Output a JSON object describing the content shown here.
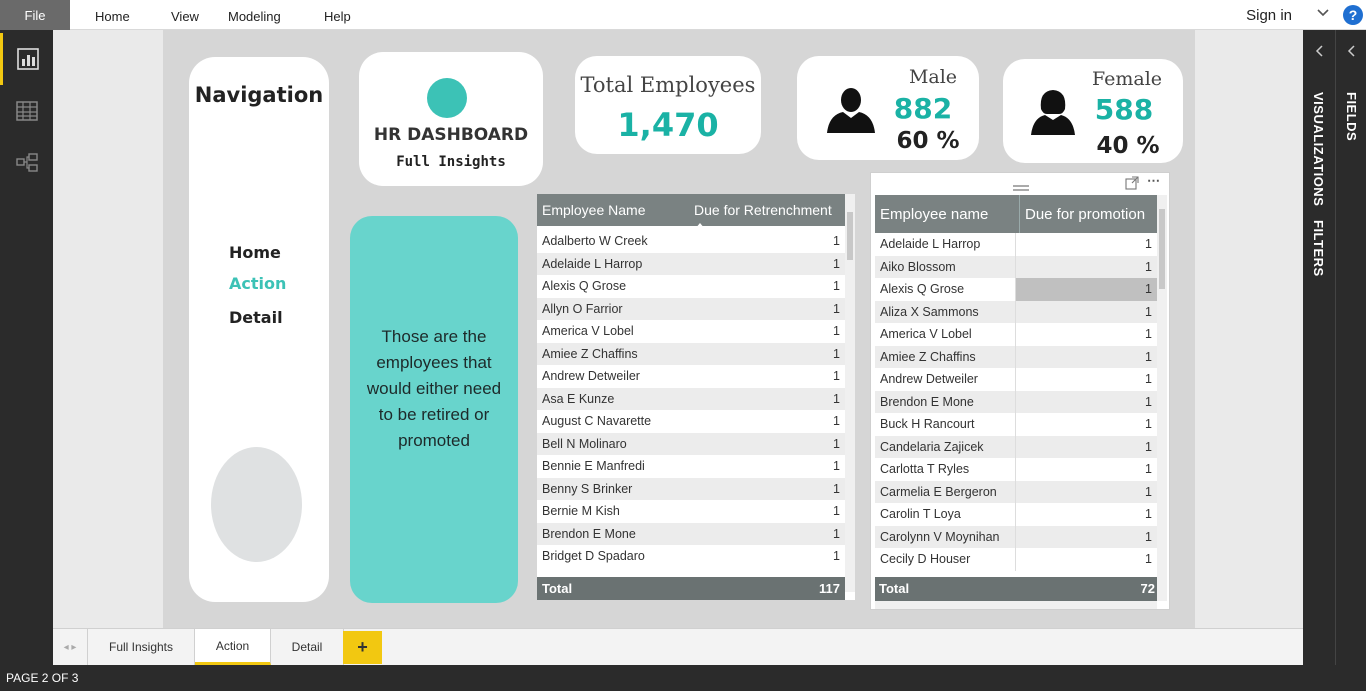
{
  "menu": {
    "file": "File",
    "items": [
      "Home",
      "View",
      "Modeling",
      "Help"
    ],
    "signin": "Sign in",
    "help_icon": "?"
  },
  "nav_card": {
    "title": "Navigation",
    "links": [
      "Home",
      "Action",
      "Detail"
    ]
  },
  "logo_card": {
    "title": "HR DASHBOARD",
    "subtitle": "Full Insights"
  },
  "total_card": {
    "label": "Total Employees",
    "value": "1,470"
  },
  "male_card": {
    "label": "Male",
    "count": "882",
    "pct": "60 %"
  },
  "female_card": {
    "label": "Female",
    "count": "588",
    "pct": "40 %"
  },
  "info_card": {
    "text": "Those are the employees that would either need to be retired or promoted"
  },
  "retrench_table": {
    "col_name": "Employee Name",
    "col_value": "Due for Retrenchment",
    "rows": [
      {
        "name": "Adalberto W Creek",
        "value": "1"
      },
      {
        "name": "Adelaide L Harrop",
        "value": "1"
      },
      {
        "name": "Alexis Q Grose",
        "value": "1"
      },
      {
        "name": "Allyn O Farrior",
        "value": "1"
      },
      {
        "name": "America V Lobel",
        "value": "1"
      },
      {
        "name": "Amiee Z Chaffins",
        "value": "1"
      },
      {
        "name": "Andrew Detweiler",
        "value": "1"
      },
      {
        "name": "Asa E Kunze",
        "value": "1"
      },
      {
        "name": "August C Navarette",
        "value": "1"
      },
      {
        "name": "Bell N Molinaro",
        "value": "1"
      },
      {
        "name": "Bennie E Manfredi",
        "value": "1"
      },
      {
        "name": "Benny S Brinker",
        "value": "1"
      },
      {
        "name": "Bernie M Kish",
        "value": "1"
      },
      {
        "name": "Brendon E Mone",
        "value": "1"
      },
      {
        "name": "Bridget D Spadaro",
        "value": "1"
      }
    ],
    "total_label": "Total",
    "total_value": "117"
  },
  "promo_table": {
    "col_name": "Employee name",
    "col_value": "Due for promotion",
    "rows": [
      {
        "name": "Adelaide L Harrop",
        "value": "1"
      },
      {
        "name": "Aiko Blossom",
        "value": "1"
      },
      {
        "name": "Alexis Q Grose",
        "value": "1"
      },
      {
        "name": "Aliza X Sammons",
        "value": "1"
      },
      {
        "name": "America V Lobel",
        "value": "1"
      },
      {
        "name": "Amiee Z Chaffins",
        "value": "1"
      },
      {
        "name": "Andrew Detweiler",
        "value": "1"
      },
      {
        "name": "Brendon E Mone",
        "value": "1"
      },
      {
        "name": "Buck H Rancourt",
        "value": "1"
      },
      {
        "name": "Candelaria Zajicek",
        "value": "1"
      },
      {
        "name": "Carlotta T Ryles",
        "value": "1"
      },
      {
        "name": "Carmelia E Bergeron",
        "value": "1"
      },
      {
        "name": "Carolin T Loya",
        "value": "1"
      },
      {
        "name": "Carolynn V Moynihan",
        "value": "1"
      },
      {
        "name": "Cecily D Houser",
        "value": "1"
      }
    ],
    "total_label": "Total",
    "total_value": "72"
  },
  "right_panes": {
    "visualizations": "VISUALIZATIONS",
    "filters": "FILTERS",
    "fields": "FIELDS"
  },
  "tabs": [
    "Full Insights",
    "Action",
    "Detail"
  ],
  "active_tab": "Action",
  "add_tab": "+",
  "status": "PAGE 2 OF 3",
  "colors": {
    "teal": "#1ab2a5",
    "teal_bg": "#68d4cc",
    "accent_yellow": "#f2c811",
    "dark_chrome": "#2b2b2b"
  }
}
